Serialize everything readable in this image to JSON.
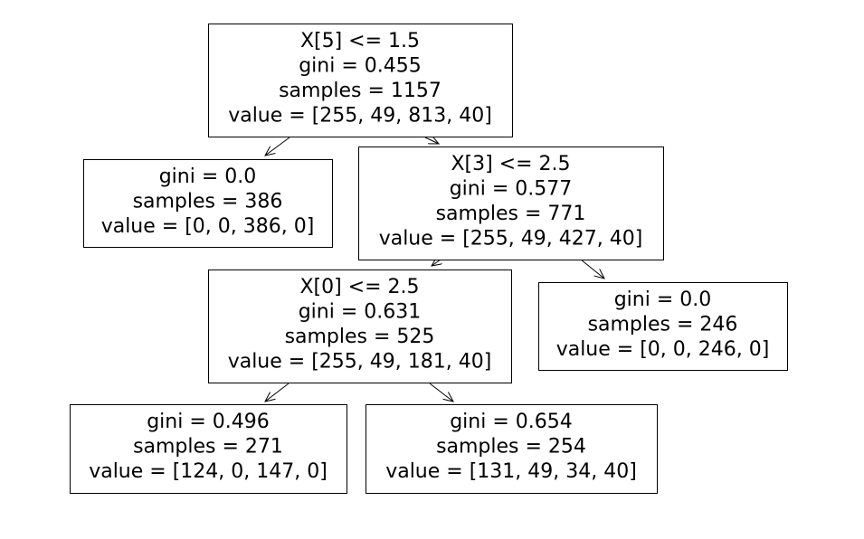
{
  "tree": {
    "nodes": [
      {
        "id": "n0",
        "lines": [
          "X[5] <= 1.5",
          "gini = 0.455",
          "samples = 1157",
          "value = [255, 49, 813, 40]"
        ]
      },
      {
        "id": "n1",
        "lines": [
          "gini = 0.0",
          "samples = 386",
          "value = [0, 0, 386, 0]"
        ]
      },
      {
        "id": "n2",
        "lines": [
          "X[3] <= 2.5",
          "gini = 0.577",
          "samples = 771",
          "value = [255, 49, 427, 40]"
        ]
      },
      {
        "id": "n3",
        "lines": [
          "X[0] <= 2.5",
          "gini = 0.631",
          "samples = 525",
          "value = [255, 49, 181, 40]"
        ]
      },
      {
        "id": "n4",
        "lines": [
          "gini = 0.0",
          "samples = 246",
          "value = [0, 0, 246, 0]"
        ]
      },
      {
        "id": "n5",
        "lines": [
          "gini = 0.496",
          "samples = 271",
          "value = [124, 0, 147, 0]"
        ]
      },
      {
        "id": "n6",
        "lines": [
          "gini = 0.654",
          "samples = 254",
          "value = [131, 49, 34, 40]"
        ]
      }
    ],
    "edges": [
      {
        "from": "n0",
        "to": "n1"
      },
      {
        "from": "n0",
        "to": "n2"
      },
      {
        "from": "n2",
        "to": "n3"
      },
      {
        "from": "n2",
        "to": "n4"
      },
      {
        "from": "n3",
        "to": "n5"
      },
      {
        "from": "n3",
        "to": "n6"
      }
    ]
  }
}
